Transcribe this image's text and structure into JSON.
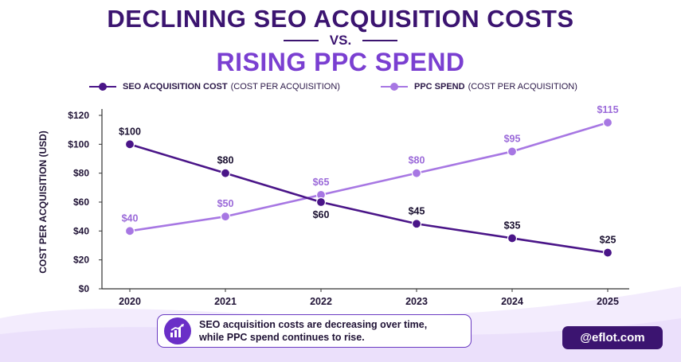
{
  "header": {
    "title_line1": "DECLINING SEO ACQUISITION COSTS",
    "vs": "VS.",
    "title_line2": "RISING PPC SPEND"
  },
  "legend": {
    "seo_bold": "SEO ACQUISITION COST",
    "seo_rest": "(COST PER ACQUISITION)",
    "ppc_bold": "PPC SPEND",
    "ppc_rest": "(COST PER ACQUISITION)"
  },
  "colors": {
    "seo": "#4a1588",
    "ppc": "#a777e3",
    "seo_label": "#1a1030",
    "ppc_label": "#9b6ad9"
  },
  "chart_data": {
    "type": "line",
    "ylabel": "COST PER ACQUISITION (USD)",
    "ylim": [
      0,
      120
    ],
    "yticks": [
      "$0",
      "$20",
      "$40",
      "$60",
      "$80",
      "$100",
      "$120"
    ],
    "categories": [
      "2020",
      "2021",
      "2022",
      "2023",
      "2024",
      "2025"
    ],
    "series": [
      {
        "name": "SEO ACQUISITION COST (COST PER ACQUISITION)",
        "values": [
          100,
          80,
          60,
          45,
          35,
          25
        ],
        "labels": [
          "$100",
          "$80",
          "$60",
          "$45",
          "$35",
          "$25"
        ]
      },
      {
        "name": "PPC SPEND (COST PER ACQUISITION)",
        "values": [
          40,
          50,
          65,
          80,
          95,
          115
        ],
        "labels": [
          "$40",
          "$50",
          "$65",
          "$80",
          "$95",
          "$115"
        ]
      }
    ],
    "grid": false,
    "legend_position": "top"
  },
  "callout": {
    "icon": "growth-chart-icon",
    "line1": "SEO acquisition costs are decreasing over time,",
    "line2": "while PPC spend continues to rise."
  },
  "brand": {
    "handle": "@eflot.com"
  }
}
